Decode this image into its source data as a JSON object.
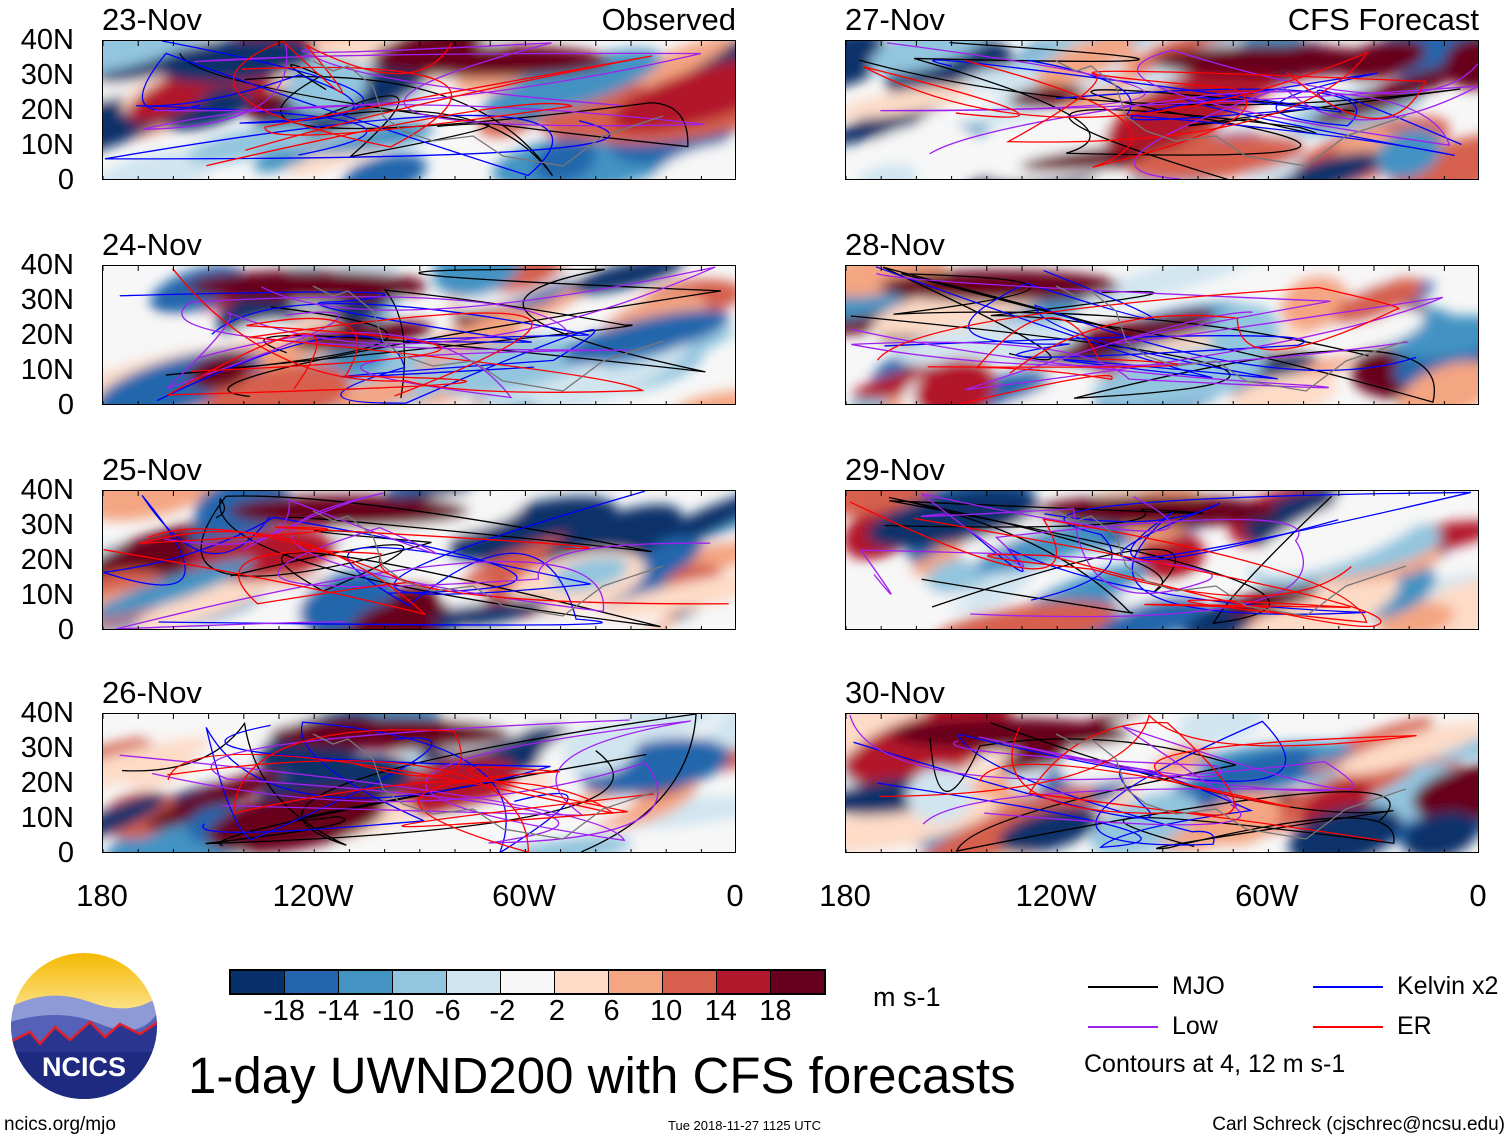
{
  "title": "1-day UWND200 with CFS forecasts",
  "columns": [
    {
      "label": "Observed",
      "panels": [
        "23-Nov",
        "24-Nov",
        "25-Nov",
        "26-Nov"
      ]
    },
    {
      "label": "CFS Forecast",
      "panels": [
        "27-Nov",
        "28-Nov",
        "29-Nov",
        "30-Nov"
      ]
    }
  ],
  "y_ticks": [
    "40N",
    "30N",
    "20N",
    "10N",
    "0"
  ],
  "x_ticks": [
    "180",
    "120W",
    "60W",
    "0"
  ],
  "colorbar": {
    "levels": [
      "-18",
      "-14",
      "-10",
      "-6",
      "-2",
      "2",
      "6",
      "10",
      "14",
      "18"
    ],
    "colors": [
      "#08306b",
      "#2166ac",
      "#4393c3",
      "#92c5de",
      "#d1e5f0",
      "#f7f7f7",
      "#fddbc7",
      "#f4a582",
      "#d6604d",
      "#b2182b",
      "#67001f"
    ],
    "units": "m s-1"
  },
  "legend": [
    {
      "label": "MJO",
      "color": "#000000"
    },
    {
      "label": "Kelvin x2",
      "color": "#0000ff"
    },
    {
      "label": "Low",
      "color": "#a020f0"
    },
    {
      "label": "ER",
      "color": "#ff0000"
    }
  ],
  "contour_note": "Contours at 4, 12 m s-1",
  "logo_text": "NCICS",
  "footer": {
    "left": "ncics.org/mjo",
    "center": "Tue 2018-11-27 1125 UTC",
    "right": "Carl Schreck (cjschrec@ncsu.edu)"
  }
}
